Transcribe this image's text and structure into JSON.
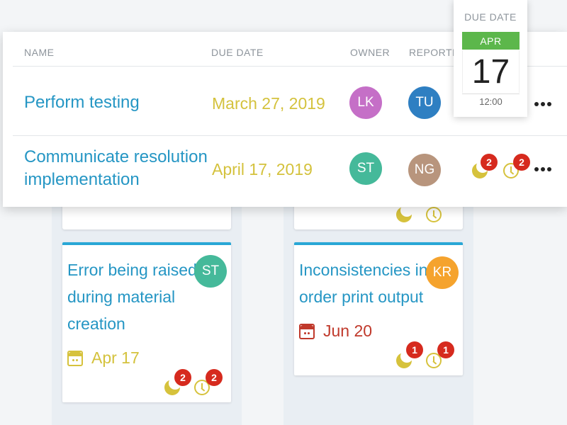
{
  "colors": {
    "link_blue": "#2596c4",
    "date_yellow": "#d4c23d",
    "badge_red": "#d62a1e",
    "month_green": "#5cb74b",
    "card_accent": "#2aa7d6"
  },
  "table": {
    "headers": {
      "name": "NAME",
      "due_date": "DUE DATE",
      "owner": "OWNER",
      "reporter": "REPORTER"
    },
    "rows": [
      {
        "name_line1": "Perform testing",
        "name_line2": "",
        "due_date": "March 27, 2019",
        "owner": {
          "initials": "LK",
          "color": "#c56fc7"
        },
        "reporter": {
          "initials": "TU",
          "color": "#2e7fc2"
        }
      },
      {
        "name_line1": "Communicate resolution",
        "name_line2": "implementation",
        "due_date": "April 17, 2019",
        "owner": {
          "initials": "ST",
          "color": "#45b99a"
        },
        "reporter": {
          "initials": "NG",
          "color": "#b8957d"
        },
        "badges": {
          "first": "2",
          "second": "2"
        }
      }
    ]
  },
  "date_popover": {
    "label": "DUE DATE",
    "month": "APR",
    "day": "17",
    "time": "12:00"
  },
  "cards": [
    {
      "title_lines": [
        "Error being raised",
        "during material",
        "creation"
      ],
      "assignee": {
        "initials": "ST",
        "color": "#45b99a"
      },
      "date": "Apr 17",
      "date_icon": "calendar-icon",
      "badges": {
        "first": "2",
        "second": "2"
      }
    },
    {
      "title_lines": [
        "Inconsistencies in",
        "order print output"
      ],
      "assignee": {
        "initials": "KR",
        "color": "#f5a32d"
      },
      "date": "Jun 20",
      "date_icon": "calendar-icon",
      "badges": {
        "first": "1",
        "second": "1"
      }
    }
  ]
}
